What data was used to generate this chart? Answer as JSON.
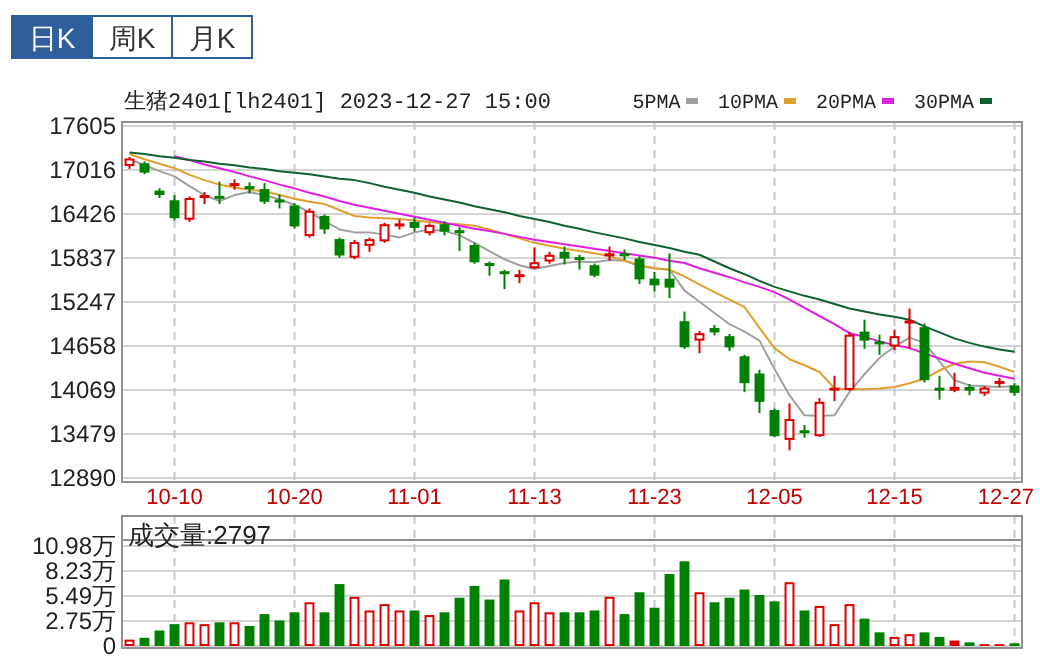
{
  "chart_data": [
    {
      "type": "candlestick",
      "title": "生猪2401[lh2401] 2023-12-27 15:00",
      "annotations": [
        "日K",
        "周K",
        "月K"
      ],
      "categories": [
        null,
        null,
        null,
        "10-10",
        null,
        null,
        null,
        null,
        null,
        null,
        null,
        "10-20",
        null,
        null,
        null,
        null,
        null,
        null,
        null,
        "11-01",
        null,
        null,
        null,
        null,
        null,
        null,
        null,
        "11-13",
        null,
        null,
        null,
        null,
        null,
        null,
        null,
        "11-23",
        null,
        null,
        null,
        null,
        null,
        null,
        null,
        "12-05",
        null,
        null,
        null,
        null,
        null,
        null,
        null,
        "12-15",
        null,
        null,
        null,
        null,
        null,
        null,
        null,
        "12-27"
      ],
      "ohlc": [
        [
          17070,
          17190,
          17030,
          17170
        ],
        [
          17106,
          17130,
          16960,
          16980
        ],
        [
          16740,
          16770,
          16640,
          16680
        ],
        [
          16610,
          16680,
          16340,
          16370
        ],
        [
          16350,
          16660,
          16320,
          16640
        ],
        [
          16640,
          16720,
          16560,
          16680
        ],
        [
          16670,
          16860,
          16560,
          16660
        ],
        [
          16800,
          16890,
          16750,
          16840
        ],
        [
          16800,
          16850,
          16700,
          16780
        ],
        [
          16760,
          16840,
          16560,
          16590
        ],
        [
          16620,
          16690,
          16500,
          16610
        ],
        [
          16540,
          16570,
          16230,
          16260
        ],
        [
          16130,
          16500,
          16110,
          16470
        ],
        [
          16400,
          16420,
          16160,
          16220
        ],
        [
          16090,
          16110,
          15840,
          15870
        ],
        [
          15840,
          16080,
          15820,
          16050
        ],
        [
          16000,
          16110,
          15920,
          16090
        ],
        [
          16060,
          16310,
          16040,
          16290
        ],
        [
          16280,
          16350,
          16220,
          16300
        ],
        [
          16320,
          16380,
          16190,
          16240
        ],
        [
          16170,
          16300,
          16140,
          16280
        ],
        [
          16290,
          16330,
          16140,
          16190
        ],
        [
          16210,
          16250,
          15930,
          16190
        ],
        [
          16010,
          16040,
          15760,
          15780
        ],
        [
          15770,
          15790,
          15600,
          15750
        ],
        [
          15660,
          15680,
          15420,
          15640
        ],
        [
          15600,
          15680,
          15500,
          15620
        ],
        [
          15700,
          15980,
          15690,
          15780
        ],
        [
          15790,
          15920,
          15760,
          15880
        ],
        [
          15920,
          15990,
          15750,
          15830
        ],
        [
          15850,
          15880,
          15680,
          15820
        ],
        [
          15740,
          15760,
          15580,
          15600
        ],
        [
          15870,
          15990,
          15800,
          15900
        ],
        [
          15900,
          15950,
          15810,
          15880
        ],
        [
          15830,
          15860,
          15490,
          15550
        ],
        [
          15560,
          15650,
          15390,
          15470
        ],
        [
          15560,
          15900,
          15300,
          15440
        ],
        [
          14990,
          15120,
          14620,
          14640
        ],
        [
          14730,
          14860,
          14560,
          14830
        ],
        [
          14900,
          14940,
          14800,
          14840
        ],
        [
          14790,
          14820,
          14590,
          14640
        ],
        [
          14520,
          14540,
          14040,
          14160
        ],
        [
          14290,
          14340,
          13760,
          13910
        ],
        [
          13800,
          13820,
          13440,
          13450
        ],
        [
          13400,
          13890,
          13260,
          13680
        ],
        [
          13530,
          13600,
          13430,
          13510
        ],
        [
          13450,
          13960,
          13440,
          13910
        ],
        [
          14070,
          14260,
          13920,
          14100
        ],
        [
          14070,
          14850,
          14060,
          14810
        ],
        [
          14850,
          15010,
          14620,
          14730
        ],
        [
          14720,
          14810,
          14540,
          14700
        ],
        [
          14650,
          14880,
          14600,
          14790
        ],
        [
          14960,
          15160,
          14620,
          15000
        ],
        [
          14910,
          14960,
          14170,
          14200
        ],
        [
          14100,
          14260,
          13940,
          14080
        ],
        [
          14060,
          14300,
          14040,
          14110
        ],
        [
          14110,
          14150,
          14000,
          14060
        ],
        [
          14020,
          14120,
          13990,
          14100
        ],
        [
          14150,
          14230,
          14110,
          14190
        ],
        [
          14130,
          14160,
          13990,
          14030
        ]
      ],
      "colors": [
        "#dd0000",
        "#008000",
        "#008000",
        "#008000",
        "#dd0000",
        "#dd0000",
        "#008000",
        "#dd0000",
        "#008000",
        "#008000",
        "#008000",
        "#008000",
        "#dd0000",
        "#008000",
        "#008000",
        "#dd0000",
        "#dd0000",
        "#dd0000",
        "#dd0000",
        "#008000",
        "#dd0000",
        "#008000",
        "#008000",
        "#008000",
        "#008000",
        "#008000",
        "#dd0000",
        "#dd0000",
        "#dd0000",
        "#008000",
        "#008000",
        "#008000",
        "#dd0000",
        "#008000",
        "#008000",
        "#008000",
        "#008000",
        "#008000",
        "#dd0000",
        "#008000",
        "#008000",
        "#008000",
        "#008000",
        "#008000",
        "#dd0000",
        "#008000",
        "#dd0000",
        "#dd0000",
        "#dd0000",
        "#008000",
        "#008000",
        "#dd0000",
        "#dd0000",
        "#008000",
        "#008000",
        "#dd0000",
        "#008000",
        "#dd0000",
        "#dd0000",
        "#008000"
      ],
      "series": [
        {
          "type": "line",
          "name": "5PMA",
          "color": "#a0a0a0",
          "values": [
            17160,
            17080,
            17000,
            16930,
            16800,
            16680,
            16600,
            16680,
            16720,
            16680,
            16620,
            16550,
            16450,
            16330,
            16220,
            16180,
            16180,
            16150,
            16110,
            16180,
            16220,
            16200,
            16140,
            16040,
            15930,
            15820,
            15740,
            15690,
            15730,
            15770,
            15790,
            15780,
            15810,
            15800,
            15730,
            15700,
            15680,
            15400,
            15250,
            15100,
            14950,
            14850,
            14730,
            14350,
            14000,
            13730,
            13720,
            13730,
            14040,
            14280,
            14500,
            14650,
            14770,
            14700,
            14450,
            14200,
            14130,
            14120,
            14110,
            14120
          ]
        },
        {
          "type": "line",
          "name": "10PMA",
          "color": "#e0a030",
          "values": [
            17230,
            17160,
            17100,
            17040,
            16950,
            16880,
            16820,
            16780,
            16750,
            16730,
            16680,
            16630,
            16590,
            16560,
            16480,
            16400,
            16380,
            16370,
            16360,
            16340,
            16320,
            16300,
            16290,
            16270,
            16220,
            16160,
            16100,
            16040,
            16000,
            15960,
            15930,
            15900,
            15860,
            15800,
            15740,
            15700,
            15680,
            15590,
            15480,
            15380,
            15280,
            15180,
            14900,
            14630,
            14480,
            14400,
            14310,
            14090,
            14080,
            14080,
            14090,
            14110,
            14160,
            14220,
            14330,
            14420,
            14450,
            14440,
            14380,
            14310
          ]
        },
        {
          "type": "line",
          "name": "20PMA",
          "color": "#e020e0",
          "values": [
            null,
            null,
            null,
            17200,
            17150,
            17090,
            17040,
            16990,
            16930,
            16880,
            16820,
            16770,
            16710,
            16660,
            16600,
            16550,
            16510,
            16470,
            16430,
            16390,
            16350,
            16310,
            16270,
            16230,
            16200,
            16160,
            16120,
            16080,
            16050,
            16020,
            15990,
            15960,
            15930,
            15900,
            15870,
            15840,
            15800,
            15770,
            15700,
            15640,
            15580,
            15510,
            15450,
            15380,
            15280,
            15170,
            15060,
            14950,
            14830,
            14780,
            14720,
            14670,
            14630,
            14560,
            14490,
            14420,
            14360,
            14300,
            14260,
            14220
          ]
        },
        {
          "type": "line",
          "name": "30PMA",
          "color": "#106030",
          "values": [
            17250,
            17230,
            17200,
            17180,
            17150,
            17130,
            17100,
            17080,
            17050,
            17030,
            17000,
            16980,
            16960,
            16930,
            16900,
            16880,
            16840,
            16790,
            16750,
            16710,
            16660,
            16620,
            16580,
            16530,
            16490,
            16450,
            16400,
            16360,
            16320,
            16270,
            16230,
            16180,
            16140,
            16100,
            16050,
            16010,
            15970,
            15920,
            15880,
            15790,
            15700,
            15620,
            15530,
            15450,
            15390,
            15330,
            15280,
            15220,
            15160,
            15120,
            15080,
            15050,
            15010,
            14920,
            14840,
            14760,
            14700,
            14650,
            14610,
            14580
          ]
        }
      ],
      "ylim": [
        12890,
        17605
      ],
      "yticks": [
        17605,
        17016,
        16426,
        15837,
        15247,
        14658,
        14069,
        13479,
        12890
      ],
      "grid": true,
      "legend": "top right"
    },
    {
      "type": "bar",
      "annotations": [
        "成交量:2797"
      ],
      "categories": [
        null,
        null,
        null,
        null,
        null,
        null,
        null,
        null,
        null,
        null,
        null,
        null,
        null,
        null,
        null,
        null,
        null,
        null,
        null,
        null,
        null,
        null,
        null,
        null,
        null,
        null,
        null,
        null,
        null,
        null,
        null,
        null,
        null,
        null,
        null,
        null,
        null,
        null,
        null,
        null,
        null,
        null,
        null,
        null,
        null,
        null,
        null,
        null,
        null,
        null,
        null,
        null,
        null,
        null,
        null,
        null,
        null,
        null,
        null,
        null
      ],
      "values": [
        0.7,
        0.9,
        1.7,
        2.4,
        2.6,
        2.4,
        2.6,
        2.6,
        2.2,
        3.5,
        2.8,
        3.7,
        4.8,
        3.7,
        6.8,
        5.4,
        3.9,
        4.6,
        3.9,
        3.9,
        3.4,
        3.7,
        5.3,
        6.6,
        5.1,
        7.3,
        3.9,
        4.8,
        3.7,
        3.7,
        3.7,
        3.9,
        5.4,
        3.5,
        5.9,
        4.2,
        7.9,
        9.3,
        5.9,
        4.8,
        5.3,
        6.2,
        5.6,
        4.9,
        7.0,
        3.9,
        4.4,
        2.4,
        4.6,
        3.0,
        1.5,
        1.0,
        1.3,
        1.5,
        1.0,
        0.6,
        0.4,
        0.2,
        0.2,
        0.3
      ],
      "colors": [
        "#dd0000",
        "#008000",
        "#008000",
        "#008000",
        "#dd0000",
        "#dd0000",
        "#008000",
        "#dd0000",
        "#008000",
        "#008000",
        "#008000",
        "#008000",
        "#dd0000",
        "#008000",
        "#008000",
        "#dd0000",
        "#dd0000",
        "#dd0000",
        "#dd0000",
        "#008000",
        "#dd0000",
        "#008000",
        "#008000",
        "#008000",
        "#008000",
        "#008000",
        "#dd0000",
        "#dd0000",
        "#dd0000",
        "#008000",
        "#008000",
        "#008000",
        "#dd0000",
        "#008000",
        "#008000",
        "#008000",
        "#008000",
        "#008000",
        "#dd0000",
        "#008000",
        "#008000",
        "#008000",
        "#008000",
        "#008000",
        "#dd0000",
        "#008000",
        "#dd0000",
        "#dd0000",
        "#dd0000",
        "#008000",
        "#008000",
        "#dd0000",
        "#dd0000",
        "#008000",
        "#008000",
        "#dd0000",
        "#008000",
        "#dd0000",
        "#dd0000",
        "#008000"
      ],
      "ylim": [
        0,
        10.98
      ],
      "yticks": [
        0,
        {
          "value": 2.75,
          "label": "2.75万"
        },
        {
          "value": 5.49,
          "label": "5.49万"
        },
        {
          "value": 8.23,
          "label": "8.23万"
        },
        {
          "value": 10.98,
          "label": "10.98万"
        }
      ],
      "grid": true
    }
  ]
}
